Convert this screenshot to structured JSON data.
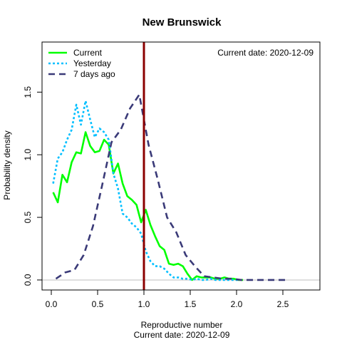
{
  "chart_data": {
    "type": "line",
    "title": "New Brunswick",
    "xlabel": "Reproductive number",
    "xlabel_sub": "Current date:  2020-12-09",
    "ylabel": "Probability density",
    "annotation": "Current date:  2020-12-09",
    "xlim": [
      -0.1,
      2.9
    ],
    "ylim": [
      -0.08,
      1.9
    ],
    "x_ticks": [
      "0.0",
      "0.5",
      "1.0",
      "1.5",
      "2.0",
      "2.5"
    ],
    "x_tick_values": [
      0,
      0.5,
      1.0,
      1.5,
      2.0,
      2.5
    ],
    "y_ticks": [
      "0.0",
      "0.5",
      "1.0",
      "1.5"
    ],
    "y_tick_values": [
      0,
      0.5,
      1.0,
      1.5
    ],
    "reference_line": {
      "x": 1.0,
      "color": "#8b0000"
    },
    "baseline": {
      "y": 0,
      "color": "#bebebe"
    },
    "legend_position": "top-left",
    "series": [
      {
        "name": "Current",
        "color": "#00ff00",
        "style": "solid",
        "x": [
          0.02,
          0.07,
          0.12,
          0.17,
          0.22,
          0.27,
          0.32,
          0.37,
          0.42,
          0.47,
          0.52,
          0.57,
          0.62,
          0.67,
          0.72,
          0.77,
          0.82,
          0.87,
          0.92,
          0.97,
          1.02,
          1.07,
          1.12,
          1.17,
          1.22,
          1.27,
          1.32,
          1.37,
          1.42,
          1.47,
          1.52,
          1.57,
          1.62,
          1.67,
          1.72,
          1.77,
          1.82,
          1.87,
          1.92,
          1.97,
          2.02,
          2.07
        ],
        "y": [
          0.7,
          0.62,
          0.84,
          0.78,
          0.94,
          1.02,
          1.01,
          1.18,
          1.07,
          1.02,
          1.03,
          1.12,
          1.08,
          0.85,
          0.93,
          0.77,
          0.67,
          0.64,
          0.6,
          0.46,
          0.56,
          0.44,
          0.35,
          0.27,
          0.24,
          0.13,
          0.12,
          0.13,
          0.11,
          0.05,
          0.0,
          0.03,
          0.02,
          0.02,
          0.02,
          0.01,
          0.01,
          0.02,
          0.01,
          0.01,
          0.0,
          0.0
        ]
      },
      {
        "name": "Yesterday",
        "color": "#00bfff",
        "style": "dotted",
        "x": [
          0.02,
          0.07,
          0.12,
          0.17,
          0.22,
          0.27,
          0.32,
          0.37,
          0.42,
          0.47,
          0.52,
          0.57,
          0.62,
          0.67,
          0.72,
          0.77,
          0.82,
          0.87,
          0.92,
          0.97,
          1.02,
          1.07,
          1.12,
          1.17,
          1.22,
          1.27,
          1.32,
          1.37,
          1.42,
          1.47,
          1.52,
          1.57,
          1.62,
          1.67,
          1.72,
          1.77,
          1.82,
          1.87,
          1.92,
          1.97,
          2.02
        ],
        "y": [
          0.77,
          0.97,
          1.02,
          1.12,
          1.2,
          1.4,
          1.24,
          1.43,
          1.28,
          1.14,
          1.21,
          1.18,
          1.12,
          0.85,
          0.73,
          0.53,
          0.5,
          0.45,
          0.42,
          0.37,
          0.23,
          0.15,
          0.11,
          0.11,
          0.09,
          0.05,
          0.02,
          0.02,
          0.01,
          0.01,
          0.0,
          0.01,
          0.0,
          0.0,
          0.01,
          0.0,
          0.0,
          0.0,
          0.0,
          0.0,
          0.0
        ]
      },
      {
        "name": "7 days ago",
        "color": "#3a3a78",
        "style": "dashed",
        "x": [
          0.05,
          0.15,
          0.25,
          0.35,
          0.45,
          0.55,
          0.65,
          0.75,
          0.85,
          0.95,
          1.05,
          1.15,
          1.25,
          1.35,
          1.45,
          1.55,
          1.65,
          1.75,
          1.85,
          1.95,
          2.05,
          2.15,
          2.25,
          2.35,
          2.45,
          2.55
        ],
        "y": [
          0.01,
          0.06,
          0.08,
          0.2,
          0.43,
          0.76,
          1.1,
          1.2,
          1.37,
          1.48,
          1.08,
          0.8,
          0.5,
          0.38,
          0.2,
          0.11,
          0.03,
          0.02,
          0.01,
          0.01,
          0.0,
          0.0,
          0.0,
          0.0,
          0.0,
          0.0
        ]
      }
    ]
  }
}
